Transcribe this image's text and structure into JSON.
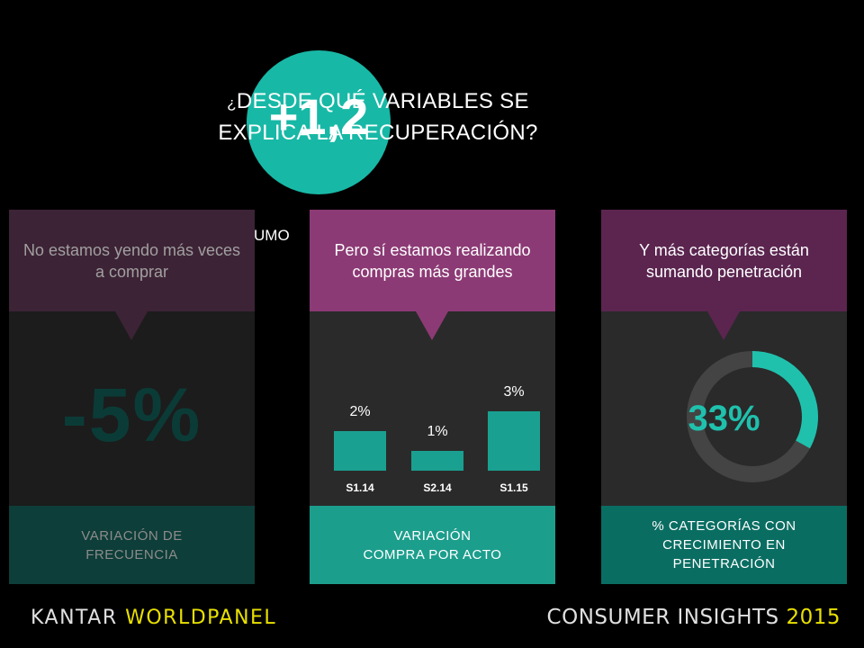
{
  "badge": {
    "value": "+1,2"
  },
  "title": {
    "prefix": "¿",
    "line1": "DESDE QUÉ VARIABLES SE",
    "line2": "EXPLICA LA RECUPERACIÓN?"
  },
  "hidden_word": "UMO",
  "panels": [
    {
      "header": "No estamos yendo más veces a comprar",
      "value": "-5%",
      "footer_line1": "VARIACIÓN DE",
      "footer_line2": "FRECUENCIA"
    },
    {
      "header": "Pero sí estamos realizando compras más grandes",
      "footer_line1": "VARIACIÓN",
      "footer_line2": "COMPRA POR ACTO"
    },
    {
      "header": "Y más categorías están sumando penetración",
      "value": "33%",
      "footer_line1": "% CATEGORÍAS CON",
      "footer_line2": "CRECIMIENTO EN",
      "footer_line3": "PENETRACIÓN"
    }
  ],
  "chart_data": {
    "type": "bar",
    "categories": [
      "S1.14",
      "S2.14",
      "S1.15"
    ],
    "values": [
      2,
      1,
      3
    ],
    "value_labels": [
      "2%",
      "1%",
      "3%"
    ],
    "ylim": [
      0,
      3
    ]
  },
  "donut": {
    "percent": 33,
    "color": "#1fc1ad",
    "track_color": "#444444"
  },
  "footer": {
    "brand_left_a": "KANTAR ",
    "brand_left_b": "WORLDPANEL",
    "brand_right_a": "CONSUMER INSIGHTS ",
    "brand_right_b": "2015"
  },
  "colors": {
    "teal": "#18b8a6",
    "magenta": "#8c3a75",
    "plum": "#5b2550"
  }
}
